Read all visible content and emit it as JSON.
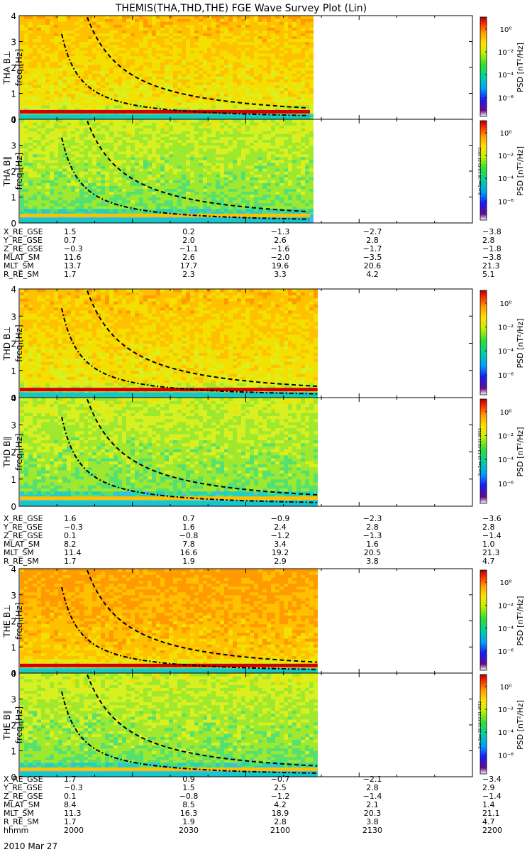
{
  "title": "THEMIS(THA,THD,THE) FGE Wave Survey Plot (Lin)",
  "colorbar": {
    "label": "PSD [nT²/Hz]",
    "ticks": [
      "10⁰",
      "10⁻²",
      "10⁻⁴",
      "10⁻⁶"
    ],
    "stamp": "Sun Sep 16 13:42:21 2012"
  },
  "chart_data": [
    {
      "type": "heatmap",
      "probe": "THA",
      "component": "B⊥",
      "ylabel": "THA B⊥",
      "yunit": "freq [Hz]",
      "ylim": [
        0,
        4
      ],
      "yticks": [
        "0",
        "1",
        "2",
        "3",
        "4"
      ],
      "data_end_time": "2117",
      "cyclotron_curves": [
        "dash-dot",
        "dashed"
      ]
    },
    {
      "type": "heatmap",
      "probe": "THA",
      "component": "B∥",
      "ylabel": "THA B∥",
      "yunit": "freq [Hz]",
      "ylim": [
        0,
        4
      ],
      "yticks": [
        "0",
        "1",
        "2",
        "3",
        "4"
      ],
      "data_end_time": "2117",
      "cyclotron_curves": [
        "dash-dot",
        "dashed"
      ]
    },
    {
      "type": "heatmap",
      "probe": "THD",
      "component": "B⊥",
      "ylabel": "THD B⊥",
      "yunit": "freq [Hz]",
      "ylim": [
        0,
        4
      ],
      "yticks": [
        "0",
        "1",
        "2",
        "3",
        "4"
      ],
      "data_end_time": "2119",
      "cyclotron_curves": [
        "dash-dot",
        "dashed"
      ]
    },
    {
      "type": "heatmap",
      "probe": "THD",
      "component": "B∥",
      "ylabel": "THD B∥",
      "yunit": "freq [Hz]",
      "ylim": [
        0,
        4
      ],
      "yticks": [
        "0",
        "1",
        "2",
        "3",
        "4"
      ],
      "data_end_time": "2119",
      "cyclotron_curves": [
        "dash-dot",
        "dashed"
      ]
    },
    {
      "type": "heatmap",
      "probe": "THE",
      "component": "B⊥",
      "ylabel": "THE B⊥",
      "yunit": "freq [Hz]",
      "ylim": [
        0,
        4
      ],
      "yticks": [
        "0",
        "1",
        "2",
        "3",
        "4"
      ],
      "data_end_time": "2119",
      "cyclotron_curves": [
        "dash-dot",
        "dashed"
      ]
    },
    {
      "type": "heatmap",
      "probe": "THE",
      "component": "B∥",
      "ylabel": "THE B∥",
      "yunit": "freq [Hz]",
      "ylim": [
        0,
        4
      ],
      "yticks": [
        "0",
        "1",
        "2",
        "3",
        "4"
      ],
      "data_end_time": "2119",
      "cyclotron_curves": [
        "dash-dot",
        "dashed"
      ]
    }
  ],
  "ephemeris": [
    {
      "probe": "THA",
      "rows": [
        {
          "label": "X_RE_GSE",
          "values": [
            "1.5",
            "0.2",
            "−1.3",
            "−2.7",
            "−3.8"
          ]
        },
        {
          "label": "Y_RE_GSE",
          "values": [
            "0.7",
            "2.0",
            "2.6",
            "2.8",
            "2.8"
          ]
        },
        {
          "label": "Z_RE_GSE",
          "values": [
            "−0.3",
            "−1.1",
            "−1.6",
            "−1.7",
            "−1.8"
          ]
        },
        {
          "label": "MLAT_SM",
          "values": [
            "11.6",
            "2.6",
            "−2.0",
            "−3.5",
            "−3.8"
          ]
        },
        {
          "label": "MLT_SM",
          "values": [
            "13.7",
            "17.7",
            "19.6",
            "20.6",
            "21.3"
          ]
        },
        {
          "label": "R_RE_SM",
          "values": [
            "1.7",
            "2.3",
            "3.3",
            "4.2",
            "5.1"
          ]
        }
      ]
    },
    {
      "probe": "THD",
      "rows": [
        {
          "label": "X_RE_GSE",
          "values": [
            "1.6",
            "0.7",
            "−0.9",
            "−2.3",
            "−3.6"
          ]
        },
        {
          "label": "Y_RE_GSE",
          "values": [
            "−0.3",
            "1.6",
            "2.4",
            "2.8",
            "2.8"
          ]
        },
        {
          "label": "Z_RE_GSE",
          "values": [
            "0.1",
            "−0.8",
            "−1.2",
            "−1.3",
            "−1.4"
          ]
        },
        {
          "label": "MLAT_SM",
          "values": [
            "8.2",
            "7.8",
            "3.4",
            "1.6",
            "1.0"
          ]
        },
        {
          "label": "MLT_SM",
          "values": [
            "11.4",
            "16.6",
            "19.2",
            "20.5",
            "21.3"
          ]
        },
        {
          "label": "R_RE_SM",
          "values": [
            "1.7",
            "1.9",
            "2.9",
            "3.8",
            "4.7"
          ]
        }
      ]
    },
    {
      "probe": "THE",
      "rows": [
        {
          "label": "X_RE_GSE",
          "values": [
            "1.7",
            "0.9",
            "−0.7",
            "−2.1",
            "−3.4"
          ]
        },
        {
          "label": "Y_RE_GSE",
          "values": [
            "−0.3",
            "1.5",
            "2.5",
            "2.8",
            "2.9"
          ]
        },
        {
          "label": "Z_RE_GSE",
          "values": [
            "0.1",
            "−0.8",
            "−1.2",
            "−1.4",
            "−1.4"
          ]
        },
        {
          "label": "MLAT_SM",
          "values": [
            "8.4",
            "8.5",
            "4.2",
            "2.1",
            "1.4"
          ]
        },
        {
          "label": "MLT_SM",
          "values": [
            "11.3",
            "16.3",
            "18.9",
            "20.3",
            "21.1"
          ]
        },
        {
          "label": "R_RE_SM",
          "values": [
            "1.7",
            "1.9",
            "2.8",
            "3.8",
            "4.7"
          ]
        },
        {
          "label": "hhmm",
          "values": [
            "2000",
            "2030",
            "2100",
            "2130",
            "2200"
          ]
        }
      ]
    }
  ],
  "date": "2010 Mar 27"
}
